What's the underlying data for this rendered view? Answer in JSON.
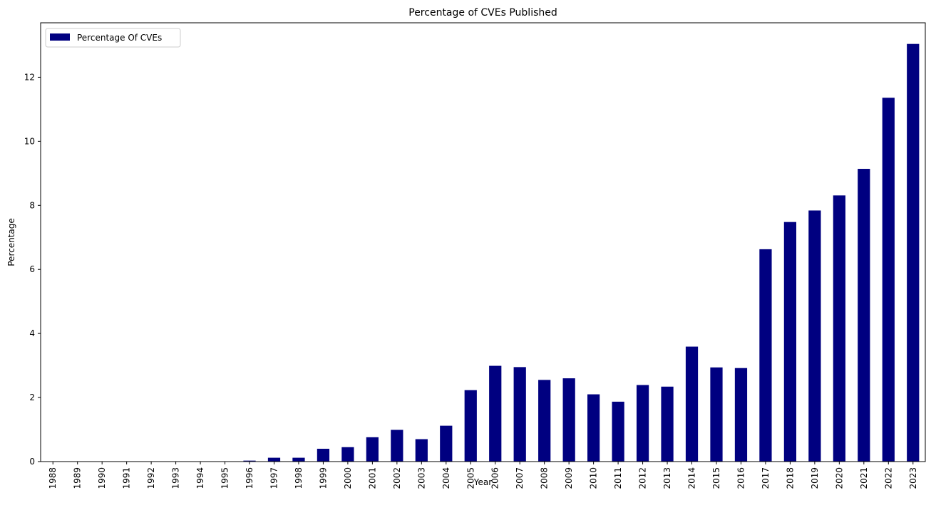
{
  "chart_data": {
    "type": "bar",
    "title": "Percentage of CVEs Published",
    "xlabel": "Year",
    "ylabel": "Percentage",
    "ylim": [
      0,
      13.7
    ],
    "yticks": [
      0,
      2,
      4,
      6,
      8,
      10,
      12
    ],
    "grid": false,
    "legend_position": "top-left",
    "color": "#000080",
    "categories": [
      "1988",
      "1989",
      "1990",
      "1991",
      "1992",
      "1993",
      "1994",
      "1995",
      "1996",
      "1997",
      "1998",
      "1999",
      "2000",
      "2001",
      "2002",
      "2003",
      "2004",
      "2005",
      "2006",
      "2007",
      "2008",
      "2009",
      "2010",
      "2011",
      "2012",
      "2013",
      "2014",
      "2015",
      "2016",
      "2017",
      "2018",
      "2019",
      "2020",
      "2021",
      "2022",
      "2023"
    ],
    "series": [
      {
        "name": "Percentage Of CVEs",
        "values": [
          0.005,
          0.005,
          0.005,
          0.005,
          0.005,
          0.005,
          0.005,
          0.01,
          0.03,
          0.12,
          0.12,
          0.4,
          0.45,
          0.76,
          0.99,
          0.7,
          1.12,
          2.23,
          2.99,
          2.95,
          2.55,
          2.6,
          2.1,
          1.87,
          2.39,
          2.34,
          3.59,
          2.94,
          2.92,
          6.63,
          7.48,
          7.84,
          8.31,
          9.14,
          11.36,
          13.04
        ]
      }
    ]
  }
}
